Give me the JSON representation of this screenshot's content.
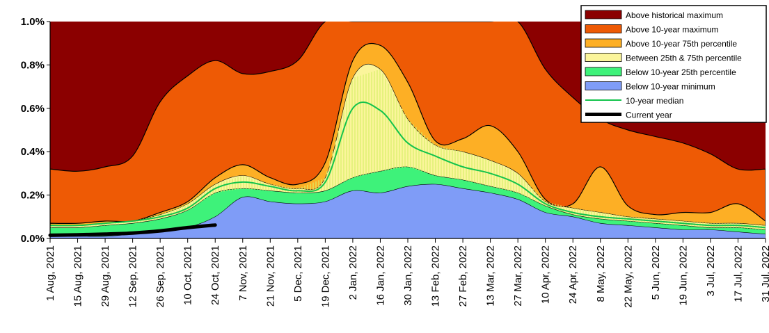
{
  "chart_data": {
    "type": "area",
    "title": "",
    "xlabel": "",
    "ylabel": "",
    "ylim": [
      0,
      1.0
    ],
    "y_ticks": [
      "0.0%",
      "0.2%",
      "0.4%",
      "0.6%",
      "0.8%",
      "1.0%"
    ],
    "y_tick_values": [
      0,
      0.2,
      0.4,
      0.6,
      0.8,
      1.0
    ],
    "grid": false,
    "legend_position": "top-right",
    "categories": [
      "1 Aug, 2021",
      "15 Aug, 2021",
      "29 Aug, 2021",
      "12 Sep, 2021",
      "26 Sep, 2021",
      "10 Oct, 2021",
      "24 Oct, 2021",
      "7 Nov, 2021",
      "21 Nov, 2021",
      "5 Dec, 2021",
      "19 Dec, 2021",
      "2 Jan, 2022",
      "16 Jan, 2022",
      "30 Jan, 2022",
      "13 Feb, 2022",
      "27 Feb, 2022",
      "13 Mar, 2022",
      "27 Mar, 2022",
      "10 Apr, 2022",
      "24 Apr, 2022",
      "8 May, 2022",
      "22 May, 2022",
      "5 Jun, 2022",
      "19 Jun, 2022",
      "3 Jul, 2022",
      "17 Jul, 2022",
      "31 Jul, 2022"
    ],
    "series": [
      {
        "name": "Above historical maximum",
        "color": "#8b0000",
        "values": [
          1.0,
          1.0,
          1.0,
          1.0,
          1.0,
          1.0,
          1.0,
          1.0,
          1.0,
          1.0,
          1.0,
          1.0,
          1.0,
          1.0,
          1.0,
          1.0,
          1.0,
          1.0,
          1.0,
          1.0,
          1.0,
          1.0,
          1.0,
          1.0,
          1.0,
          1.0,
          1.0
        ]
      },
      {
        "name": "Above 10-year maximum",
        "color": "#ee5a05",
        "values": [
          0.32,
          0.31,
          0.33,
          0.38,
          0.63,
          0.75,
          0.82,
          0.76,
          0.77,
          0.82,
          1.0,
          1.0,
          1.0,
          1.0,
          1.0,
          1.0,
          1.0,
          1.0,
          0.78,
          0.65,
          0.55,
          0.5,
          0.47,
          0.44,
          0.39,
          0.32,
          0.32
        ]
      },
      {
        "name": "Above 10-year 75th percentile",
        "color": "#fdaf25",
        "values": [
          0.07,
          0.07,
          0.08,
          0.08,
          0.12,
          0.17,
          0.28,
          0.34,
          0.28,
          0.25,
          0.35,
          0.82,
          0.89,
          0.72,
          0.45,
          0.46,
          0.52,
          0.4,
          0.18,
          0.16,
          0.33,
          0.15,
          0.11,
          0.12,
          0.12,
          0.16,
          0.08
        ]
      },
      {
        "name": "Between 25th & 75th percentile",
        "color": "#fbf59b",
        "values": [
          0.06,
          0.06,
          0.07,
          0.08,
          0.11,
          0.16,
          0.25,
          0.29,
          0.25,
          0.23,
          0.28,
          0.74,
          0.78,
          0.55,
          0.43,
          0.4,
          0.36,
          0.3,
          0.17,
          0.14,
          0.12,
          0.1,
          0.09,
          0.08,
          0.07,
          0.07,
          0.06
        ]
      },
      {
        "name": "Below 10-year 25th percentile",
        "color": "#3ef27a",
        "values": [
          0.05,
          0.05,
          0.06,
          0.07,
          0.09,
          0.13,
          0.21,
          0.23,
          0.22,
          0.21,
          0.22,
          0.28,
          0.31,
          0.33,
          0.29,
          0.27,
          0.24,
          0.21,
          0.15,
          0.11,
          0.09,
          0.08,
          0.07,
          0.06,
          0.05,
          0.05,
          0.04
        ]
      },
      {
        "name": "Below 10-year minimum",
        "color": "#7f9cf7",
        "values": [
          0.01,
          0.01,
          0.01,
          0.02,
          0.03,
          0.05,
          0.1,
          0.19,
          0.17,
          0.16,
          0.17,
          0.22,
          0.21,
          0.24,
          0.25,
          0.23,
          0.21,
          0.18,
          0.12,
          0.1,
          0.07,
          0.06,
          0.05,
          0.04,
          0.04,
          0.03,
          0.02
        ]
      },
      {
        "name": "10-year median",
        "color": "#13c34c",
        "values": [
          0.06,
          0.06,
          0.07,
          0.08,
          0.1,
          0.14,
          0.23,
          0.26,
          0.24,
          0.22,
          0.26,
          0.6,
          0.59,
          0.44,
          0.38,
          0.33,
          0.3,
          0.25,
          0.16,
          0.12,
          0.1,
          0.09,
          0.08,
          0.07,
          0.06,
          0.06,
          0.05
        ]
      },
      {
        "name": "Current year",
        "color": "#000000",
        "values": [
          0.015,
          0.017,
          0.02,
          0.025,
          0.035,
          0.05,
          0.062,
          null,
          null,
          null,
          null,
          null,
          null,
          null,
          null,
          null,
          null,
          null,
          null,
          null,
          null,
          null,
          null,
          null,
          null,
          null,
          null
        ]
      }
    ]
  }
}
